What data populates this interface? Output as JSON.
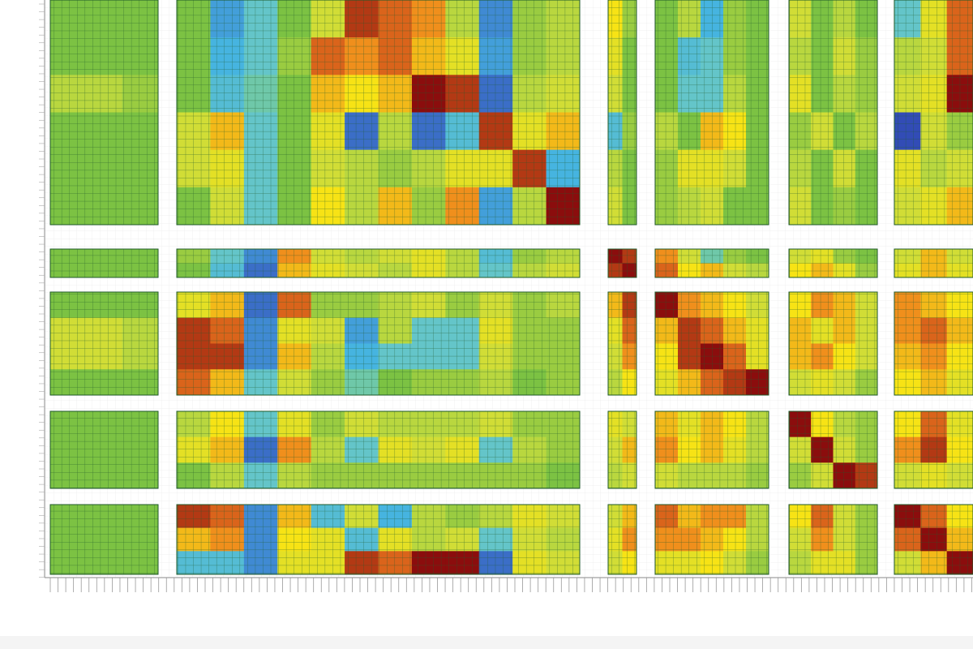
{
  "chart_data": {
    "type": "heatmap",
    "zlim": [
      -1,
      1
    ],
    "colorscale": [
      "#2a2aa5",
      "#3f7fd0",
      "#46b4e0",
      "#6cc9c3",
      "#7cc243",
      "#c8dc3e",
      "#f7e315",
      "#ee7a1e",
      "#8b0d0d"
    ],
    "values": [
      [
        0,
        0,
        0,
        0,
        -0.6,
        -0.3,
        0,
        0.3,
        0.9,
        0.8,
        0.7,
        0.2,
        -0.7,
        0.1,
        0.2,
        0.5,
        0.1,
        0,
        0.2,
        -0.5,
        0.1,
        0,
        0.3,
        0,
        0.2,
        0,
        -0.3,
        0.4,
        0.8
      ],
      [
        0,
        0,
        0,
        0,
        -0.5,
        -0.3,
        0.1,
        0.8,
        0.7,
        0.8,
        0.6,
        0.4,
        -0.6,
        0.1,
        0.2,
        0.4,
        0,
        0,
        -0.4,
        -0.3,
        0.1,
        0,
        0.2,
        0,
        0.3,
        0.1,
        0.2,
        0.3,
        0.8
      ],
      [
        0.2,
        0.2,
        0.1,
        0,
        -0.4,
        -0.2,
        0,
        0.6,
        0.5,
        0.6,
        1,
        0.9,
        -0.8,
        0.2,
        0.3,
        0.3,
        0,
        0,
        -0.3,
        -0.3,
        0.2,
        0,
        0.4,
        0,
        0.2,
        0.1,
        0.3,
        0.4,
        1
      ],
      [
        0,
        0,
        0,
        0.3,
        0.6,
        -0.3,
        0,
        0.4,
        -0.8,
        0.2,
        -0.8,
        -0.4,
        0.9,
        0.4,
        0.6,
        -0.4,
        0.1,
        0.2,
        0,
        0.6,
        0.5,
        0,
        0.1,
        0.3,
        0,
        0.2,
        -0.9,
        0.3,
        0.1
      ],
      [
        0,
        0,
        0,
        0.3,
        0.4,
        -0.3,
        0,
        0.3,
        0.2,
        0.1,
        0.2,
        0.4,
        0.4,
        0.9,
        -0.5,
        0.2,
        0,
        0.1,
        0.4,
        0.4,
        0.3,
        0,
        0.2,
        0,
        0.3,
        0,
        0.4,
        0.2,
        0.3
      ],
      [
        0,
        0,
        0,
        0,
        0.3,
        -0.3,
        0,
        0.5,
        0.2,
        0.6,
        0.1,
        0.7,
        -0.6,
        0.2,
        1,
        0.3,
        0,
        0.1,
        0.2,
        0.3,
        0,
        0,
        0.3,
        0,
        0.1,
        0,
        0.3,
        0.4,
        0.6
      ],
      [
        0,
        0,
        0,
        0.1,
        -0.3,
        -0.7,
        0.7,
        0.3,
        0.2,
        0.3,
        0.4,
        0.2,
        -0.4,
        0.1,
        0.2,
        1,
        0.9,
        0.7,
        0.3,
        -0.2,
        0.1,
        0,
        0.3,
        0.4,
        0.1,
        0,
        0.3,
        0.6,
        0.3
      ],
      [
        0,
        0,
        0,
        0,
        -0.4,
        -0.8,
        0.6,
        0.4,
        0.3,
        0.2,
        0.4,
        0.2,
        -0.3,
        0.2,
        0.3,
        0.9,
        1,
        0.8,
        0.5,
        0.6,
        0.3,
        0.2,
        0.5,
        0.6,
        0.4,
        0.1,
        0.4,
        0.6,
        0.4
      ],
      [
        0,
        0,
        0,
        0.4,
        0.6,
        -0.8,
        0.8,
        0.1,
        0.1,
        0.2,
        0.3,
        0.1,
        0.3,
        0.1,
        0.2,
        0.6,
        0.9,
        1,
        0.7,
        0.6,
        0.5,
        0.3,
        0.5,
        0.7,
        0.6,
        0.3,
        0.7,
        0.6,
        0.5
      ],
      [
        0.3,
        0.3,
        0.2,
        0.9,
        0.8,
        -0.7,
        0.4,
        0.3,
        -0.6,
        0.2,
        -0.3,
        -0.3,
        0.4,
        0.1,
        0.1,
        0.4,
        0.8,
        0.6,
        0.9,
        0.8,
        0.6,
        0.4,
        0.6,
        0.4,
        0.6,
        0.3,
        0.7,
        0.8,
        0.6
      ],
      [
        0.3,
        0.3,
        0.2,
        0.9,
        0.9,
        -0.7,
        0.6,
        0.2,
        -0.5,
        -0.3,
        -0.3,
        -0.3,
        0.3,
        0.1,
        0.1,
        0.3,
        0.7,
        0.5,
        0.9,
        1,
        0.8,
        0.4,
        0.6,
        0.7,
        0.5,
        0.3,
        0.6,
        0.7,
        0.5
      ],
      [
        0,
        0,
        0,
        0.8,
        0.6,
        -0.3,
        0.3,
        0.1,
        -0.2,
        0,
        0.1,
        0.1,
        0.2,
        0,
        0.1,
        0.2,
        0.5,
        0.4,
        0.6,
        0.8,
        0.9,
        1,
        0.3,
        0.4,
        0.3,
        0.1,
        0.5,
        0.6,
        0.4
      ],
      [
        0,
        0,
        0,
        0.2,
        0.5,
        -0.3,
        0.4,
        0.1,
        0.3,
        0.2,
        0.2,
        0.2,
        0.3,
        0.1,
        0.1,
        0.4,
        0.3,
        0.6,
        0.4,
        0.6,
        0.5,
        0.2,
        1,
        0.5,
        0.2,
        0.1,
        0.5,
        0.8,
        0.4
      ],
      [
        0,
        0,
        0,
        0.4,
        0.6,
        -0.8,
        0.7,
        0.2,
        -0.3,
        0.4,
        0.3,
        0.4,
        -0.3,
        0.2,
        0.1,
        0.3,
        0.6,
        0.7,
        0.5,
        0.6,
        0.4,
        0.2,
        0.3,
        1,
        0.3,
        0.1,
        0.7,
        0.9,
        0.5
      ],
      [
        0,
        0,
        0,
        0,
        0.2,
        -0.3,
        0.2,
        0.1,
        0.1,
        0.1,
        0.1,
        0.1,
        0.1,
        0.1,
        0,
        0.2,
        0.3,
        0.3,
        0.2,
        0.2,
        0.2,
        0.1,
        0.1,
        0.3,
        1,
        0.9,
        0.3,
        0.4,
        0.3
      ],
      [
        0,
        0,
        0,
        0.9,
        0.8,
        -0.7,
        0.6,
        -0.4,
        0.3,
        -0.5,
        0.2,
        0.1,
        0.2,
        0.4,
        0.3,
        0.3,
        0.6,
        0.8,
        0.6,
        0.7,
        0.7,
        0.2,
        0.5,
        0.8,
        0.3,
        0.1,
        1,
        0.8,
        0.5
      ],
      [
        0,
        0,
        0,
        0.6,
        0.7,
        -0.7,
        0.5,
        0.4,
        -0.4,
        0.4,
        0.2,
        0.3,
        -0.3,
        0.3,
        0.2,
        0.4,
        0.7,
        0.7,
        0.7,
        0.6,
        0.5,
        0.2,
        0.3,
        0.7,
        0.3,
        0.1,
        0.8,
        1,
        0.6
      ],
      [
        0,
        0,
        0,
        -0.4,
        -0.4,
        -0.7,
        0.4,
        0.4,
        0.9,
        0.8,
        1,
        1,
        -0.8,
        0.4,
        0.3,
        0.3,
        0.5,
        0.4,
        0.4,
        0.5,
        0.3,
        0.1,
        0.2,
        0.4,
        0.4,
        0.1,
        0.3,
        0.6,
        1
      ]
    ]
  }
}
